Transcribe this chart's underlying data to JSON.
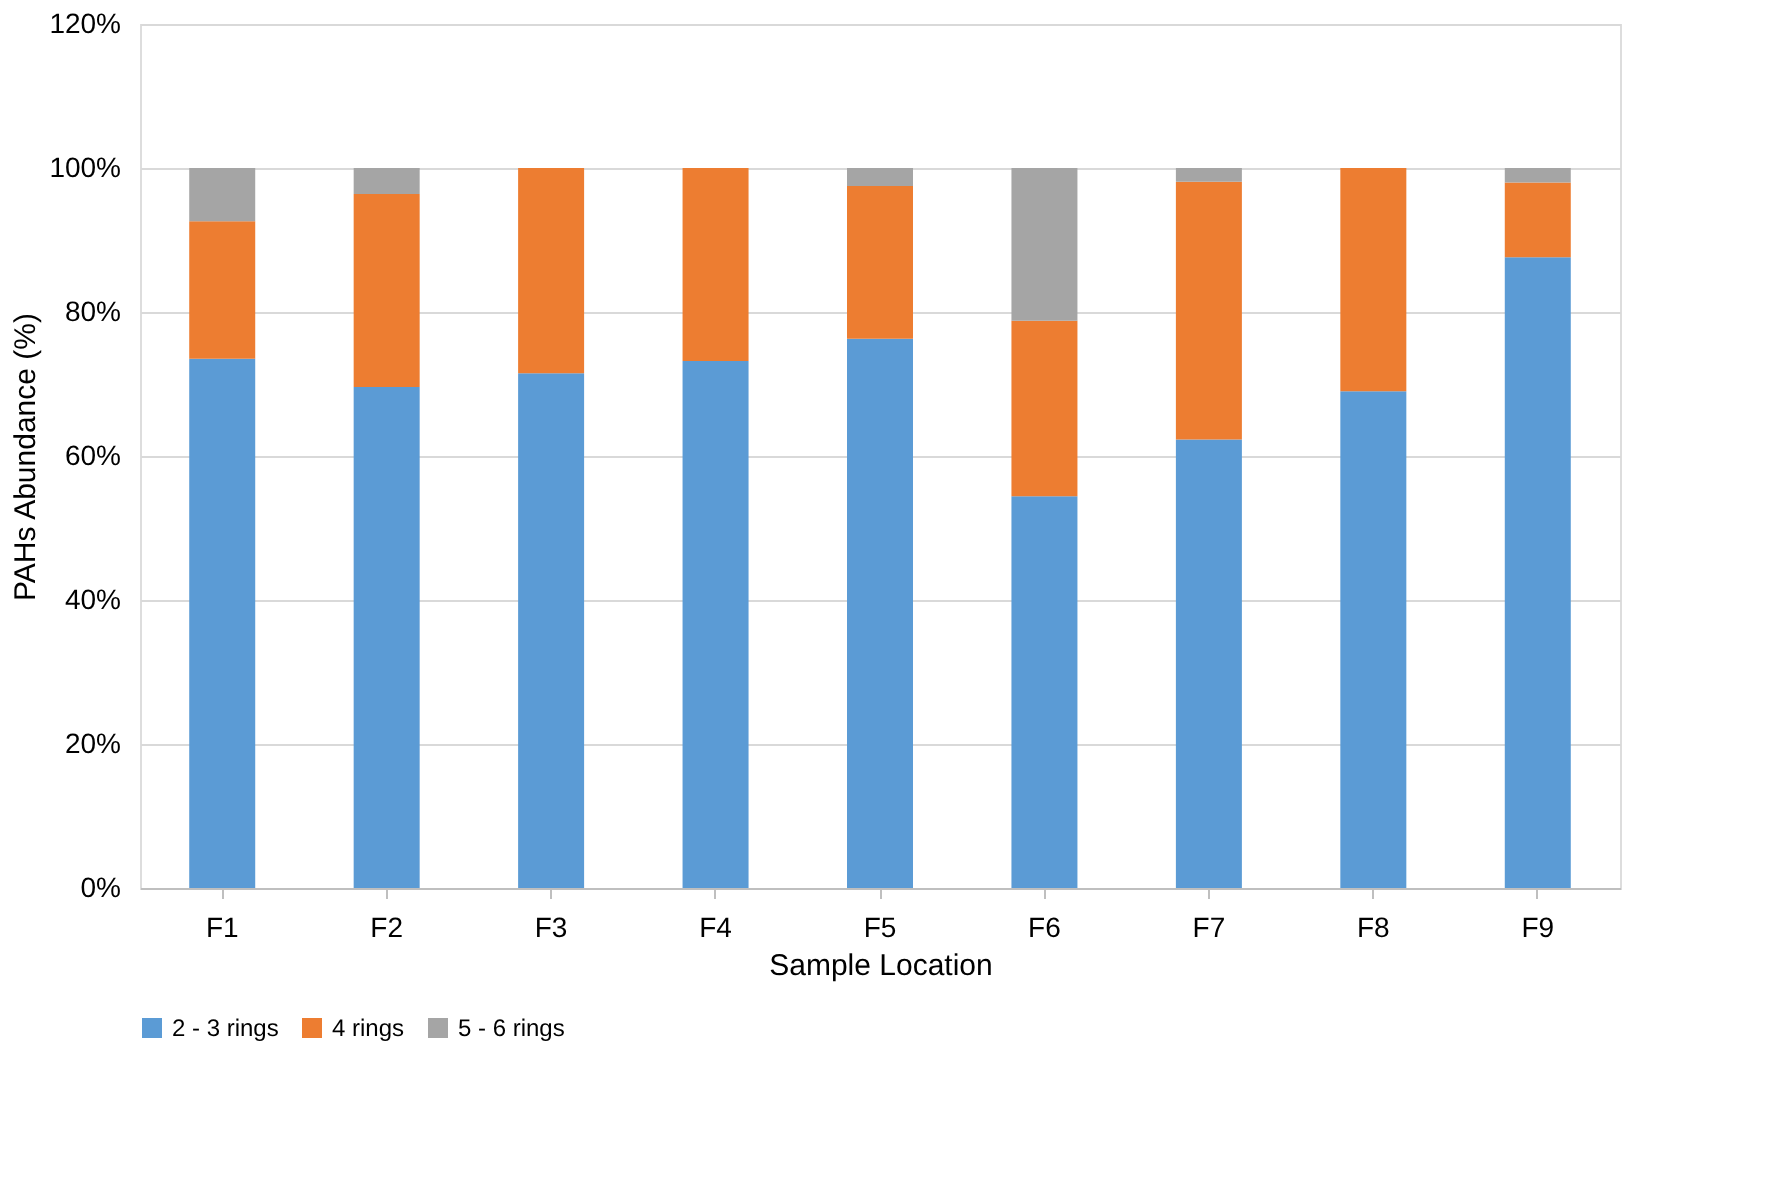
{
  "chart_data": {
    "type": "bar",
    "stacked": true,
    "xlabel": "Sample Location",
    "ylabel": "PAHs Abundance (%)",
    "categories": [
      "F1",
      "F2",
      "F3",
      "F4",
      "F5",
      "F6",
      "F7",
      "F8",
      "F9"
    ],
    "series": [
      {
        "name": "2 - 3 rings",
        "color": "#5b9bd5",
        "values": [
          73.5,
          69.6,
          71.5,
          73.2,
          76.3,
          54.4,
          62.3,
          69.0,
          87.6
        ]
      },
      {
        "name": "4 rings",
        "color": "#ed7d31",
        "values": [
          19.1,
          26.8,
          28.5,
          26.8,
          21.2,
          24.4,
          35.8,
          31.0,
          10.4
        ]
      },
      {
        "name": "5 - 6 rings",
        "color": "#a5a5a5",
        "values": [
          7.4,
          3.6,
          0,
          0,
          2.5,
          21.2,
          1.9,
          0,
          2.0
        ]
      }
    ],
    "ylim": [
      0,
      120
    ],
    "yticks": [
      {
        "value": 0,
        "label": "0%"
      },
      {
        "value": 20,
        "label": "20%"
      },
      {
        "value": 40,
        "label": "40%"
      },
      {
        "value": 60,
        "label": "60%"
      },
      {
        "value": 80,
        "label": "80%"
      },
      {
        "value": 100,
        "label": "100%"
      },
      {
        "value": 120,
        "label": "120%"
      }
    ],
    "grid": "y",
    "legend": "bottom"
  }
}
